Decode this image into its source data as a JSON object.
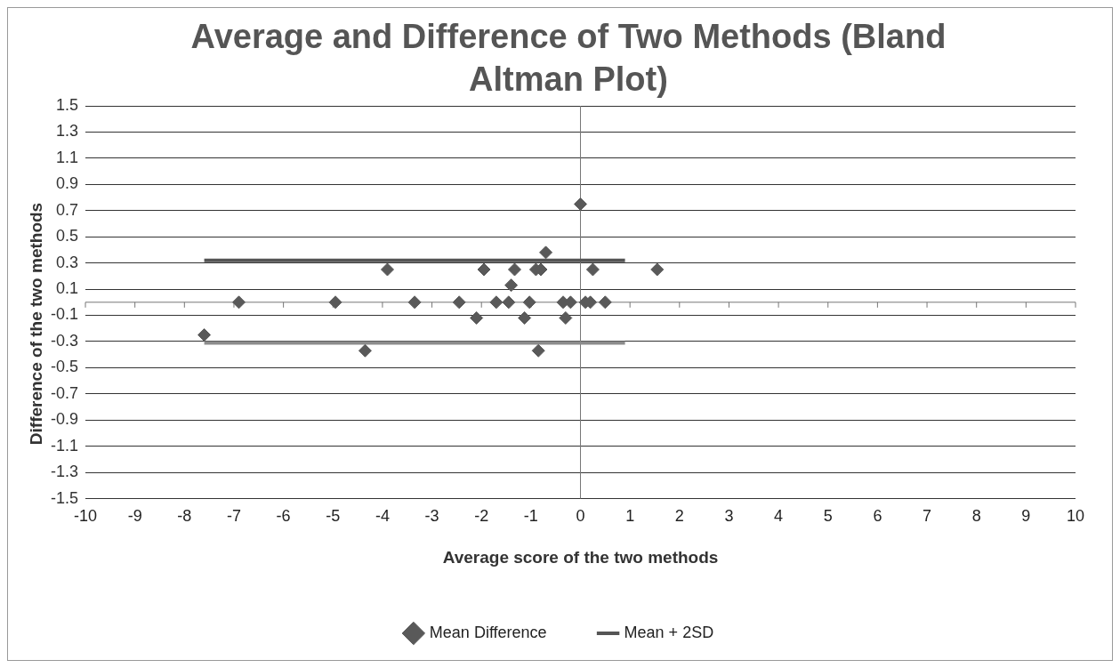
{
  "chart_data": {
    "type": "scatter",
    "title": "Average and Difference of Two Methods (Bland Altman Plot)",
    "xlabel": "Average score of the two methods",
    "ylabel": "Difference of the two methods",
    "xlim": [
      -10,
      10
    ],
    "xticks": [
      -10,
      -9,
      -8,
      -7,
      -6,
      -5,
      -4,
      -3,
      -2,
      -1,
      0,
      1,
      2,
      3,
      4,
      5,
      6,
      7,
      8,
      9,
      10
    ],
    "ylim": [
      -1.5,
      1.5
    ],
    "yticks": [
      -1.5,
      -1.3,
      -1.1,
      -0.9,
      -0.7,
      -0.5,
      -0.3,
      -0.1,
      0.1,
      0.3,
      0.5,
      0.7,
      0.9,
      1.1,
      1.3,
      1.5
    ],
    "grid": "y",
    "legend": "bottom",
    "marker": "diamond",
    "series": [
      {
        "name": "Mean Difference",
        "color": "#595959",
        "x": [
          -7.6,
          -6.9,
          -4.95,
          -4.35,
          -3.9,
          -3.35,
          -2.45,
          -2.1,
          -1.95,
          -1.7,
          -1.45,
          -1.4,
          -1.33,
          -1.13,
          -1.03,
          -0.9,
          -0.85,
          -0.8,
          -0.7,
          -0.35,
          -0.3,
          -0.2,
          0,
          0.1,
          0.2,
          0.5,
          0.25,
          1.55
        ],
        "values": [
          -0.25,
          0,
          0,
          -0.37,
          0.25,
          0,
          0,
          -0.12,
          0.25,
          0,
          0,
          0.13,
          0.25,
          -0.12,
          0,
          0.25,
          -0.37,
          0.25,
          0.38,
          0,
          -0.12,
          0,
          0.75,
          0,
          0,
          0,
          0.25,
          0.25
        ]
      },
      {
        "name": "Mean + 2SD",
        "type": "line",
        "marker": "none",
        "color": "#555555",
        "x": [
          -7.6,
          0.9
        ],
        "values": [
          0.32,
          0.32
        ]
      },
      {
        "type": "line",
        "marker": "none",
        "color": "#8c8c8c",
        "x": [
          -7.6,
          0.9
        ],
        "values": [
          -0.31,
          -0.31
        ]
      }
    ]
  }
}
